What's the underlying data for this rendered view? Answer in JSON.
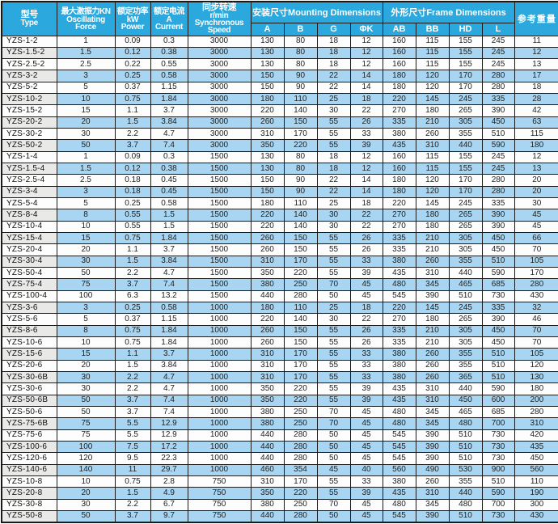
{
  "table": {
    "title": "YZS vibration motor specification table",
    "headers": {
      "type": [
        "型号",
        "Type"
      ],
      "force": [
        "最大激振力KN",
        "Oscillating",
        "Force"
      ],
      "power": [
        "额定功率",
        "kW",
        "Power"
      ],
      "current": [
        "额定电流",
        "A",
        "Current"
      ],
      "speed": [
        "同步转速",
        "r/min",
        "Synchronous",
        "Speed"
      ],
      "mounting_group": "安装尺寸Mounting Dimensions",
      "frame_group": "外形尺寸Frame Dimensions",
      "weight": "参考重量",
      "sub": [
        "A",
        "B",
        "G",
        "ΦK",
        "AB",
        "BB",
        "HD",
        "L"
      ]
    },
    "rows": [
      [
        "YZS-1-2",
        "1",
        "0.09",
        "0.3",
        "3000",
        "130",
        "80",
        "18",
        "12",
        "160",
        "115",
        "155",
        "245",
        "11"
      ],
      [
        "YZS-1.5-2",
        "1.5",
        "0.12",
        "0.38",
        "3000",
        "130",
        "80",
        "18",
        "12",
        "160",
        "115",
        "155",
        "245",
        "12"
      ],
      [
        "YZS-2.5-2",
        "2.5",
        "0.22",
        "0.55",
        "3000",
        "130",
        "80",
        "18",
        "12",
        "160",
        "115",
        "155",
        "245",
        "13"
      ],
      [
        "YZS-3-2",
        "3",
        "0.25",
        "0.58",
        "3000",
        "150",
        "90",
        "22",
        "14",
        "180",
        "120",
        "170",
        "280",
        "17"
      ],
      [
        "YZS-5-2",
        "5",
        "0.37",
        "1.15",
        "3000",
        "150",
        "90",
        "22",
        "14",
        "180",
        "120",
        "170",
        "280",
        "18"
      ],
      [
        "YZS-10-2",
        "10",
        "0.75",
        "1.84",
        "3000",
        "180",
        "110",
        "25",
        "18",
        "220",
        "145",
        "245",
        "335",
        "28"
      ],
      [
        "YZS-15-2",
        "15",
        "1.1",
        "3.7",
        "3000",
        "220",
        "140",
        "30",
        "22",
        "270",
        "180",
        "265",
        "390",
        "42"
      ],
      [
        "YZS-20-2",
        "20",
        "1.5",
        "3.84",
        "3000",
        "260",
        "150",
        "55",
        "26",
        "335",
        "210",
        "305",
        "450",
        "63"
      ],
      [
        "YZS-30-2",
        "30",
        "2.2",
        "4.7",
        "3000",
        "310",
        "170",
        "55",
        "33",
        "380",
        "260",
        "355",
        "510",
        "115"
      ],
      [
        "YZS-50-2",
        "50",
        "3.7",
        "7.4",
        "3000",
        "350",
        "220",
        "55",
        "39",
        "435",
        "310",
        "440",
        "590",
        "180"
      ],
      [
        "YZS-1-4",
        "1",
        "0.09",
        "0.3",
        "1500",
        "130",
        "80",
        "18",
        "12",
        "160",
        "115",
        "155",
        "245",
        "12"
      ],
      [
        "YZS-1.5-4",
        "1.5",
        "0.12",
        "0.38",
        "1500",
        "130",
        "80",
        "18",
        "12",
        "160",
        "115",
        "155",
        "245",
        "13"
      ],
      [
        "YZS-2.5-4",
        "2.5",
        "0.18",
        "0.45",
        "1500",
        "150",
        "90",
        "22",
        "14",
        "180",
        "120",
        "170",
        "280",
        "20"
      ],
      [
        "YZS-3-4",
        "3",
        "0.18",
        "0.45",
        "1500",
        "150",
        "90",
        "22",
        "14",
        "180",
        "120",
        "170",
        "280",
        "20"
      ],
      [
        "YZS-5-4",
        "5",
        "0.25",
        "0.58",
        "1500",
        "180",
        "110",
        "25",
        "18",
        "220",
        "145",
        "245",
        "335",
        "30"
      ],
      [
        "YZS-8-4",
        "8",
        "0.55",
        "1.5",
        "1500",
        "220",
        "140",
        "30",
        "22",
        "270",
        "180",
        "265",
        "390",
        "45"
      ],
      [
        "YZS-10-4",
        "10",
        "0.55",
        "1.5",
        "1500",
        "220",
        "140",
        "30",
        "22",
        "270",
        "180",
        "265",
        "390",
        "45"
      ],
      [
        "YZS-15-4",
        "15",
        "0.75",
        "1.84",
        "1500",
        "260",
        "150",
        "55",
        "26",
        "335",
        "210",
        "305",
        "450",
        "66"
      ],
      [
        "YZS-20-4",
        "20",
        "1.1",
        "3.7",
        "1500",
        "260",
        "150",
        "55",
        "26",
        "335",
        "210",
        "305",
        "450",
        "70"
      ],
      [
        "YZS-30-4",
        "30",
        "1.5",
        "3.84",
        "1500",
        "310",
        "170",
        "55",
        "33",
        "380",
        "260",
        "355",
        "510",
        "105"
      ],
      [
        "YZS-50-4",
        "50",
        "2.2",
        "4.7",
        "1500",
        "350",
        "220",
        "55",
        "39",
        "435",
        "310",
        "440",
        "590",
        "170"
      ],
      [
        "YZS-75-4",
        "75",
        "3.7",
        "7.4",
        "1500",
        "380",
        "250",
        "70",
        "45",
        "480",
        "345",
        "465",
        "685",
        "280"
      ],
      [
        "YZS-100-4",
        "100",
        "6.3",
        "13.2",
        "1500",
        "440",
        "280",
        "50",
        "45",
        "545",
        "390",
        "510",
        "730",
        "430"
      ],
      [
        "YZS-3-6",
        "3",
        "0.25",
        "0.58",
        "1000",
        "180",
        "110",
        "25",
        "18",
        "220",
        "145",
        "245",
        "335",
        "32"
      ],
      [
        "YZS-5-6",
        "5",
        "0.37",
        "1.15",
        "1000",
        "220",
        "140",
        "30",
        "22",
        "270",
        "180",
        "265",
        "390",
        "46"
      ],
      [
        "YZS-8-6",
        "8",
        "0.75",
        "1.84",
        "1000",
        "260",
        "150",
        "55",
        "26",
        "335",
        "210",
        "305",
        "450",
        "70"
      ],
      [
        "YZS-10-6",
        "10",
        "0.75",
        "1.84",
        "1000",
        "260",
        "150",
        "55",
        "26",
        "335",
        "210",
        "305",
        "450",
        "70"
      ],
      [
        "YZS-15-6",
        "15",
        "1.1",
        "3.7",
        "1000",
        "310",
        "170",
        "55",
        "33",
        "380",
        "260",
        "355",
        "510",
        "105"
      ],
      [
        "YZS-20-6",
        "20",
        "1.5",
        "3.84",
        "1000",
        "310",
        "170",
        "55",
        "33",
        "380",
        "260",
        "355",
        "510",
        "120"
      ],
      [
        "YZS-30-6B",
        "30",
        "2.2",
        "4.7",
        "1000",
        "310",
        "170",
        "55",
        "33",
        "380",
        "260",
        "365",
        "510",
        "130"
      ],
      [
        "YZS-30-6",
        "30",
        "2.2",
        "4.7",
        "1000",
        "350",
        "220",
        "55",
        "39",
        "435",
        "310",
        "440",
        "590",
        "180"
      ],
      [
        "YZS-50-6B",
        "50",
        "3.7",
        "7.4",
        "1000",
        "350",
        "220",
        "55",
        "39",
        "435",
        "310",
        "450",
        "600",
        "200"
      ],
      [
        "YZS-50-6",
        "50",
        "3.7",
        "7.4",
        "1000",
        "380",
        "250",
        "70",
        "45",
        "480",
        "345",
        "465",
        "685",
        "280"
      ],
      [
        "YZS-75-6B",
        "75",
        "5.5",
        "12.9",
        "1000",
        "380",
        "250",
        "70",
        "45",
        "480",
        "345",
        "480",
        "700",
        "310"
      ],
      [
        "YZS-75-6",
        "75",
        "5.5",
        "12.9",
        "1000",
        "440",
        "280",
        "50",
        "45",
        "545",
        "390",
        "510",
        "730",
        "420"
      ],
      [
        "YZS-100-6",
        "100",
        "7.5",
        "17.2",
        "1000",
        "440",
        "280",
        "50",
        "45",
        "545",
        "390",
        "510",
        "730",
        "435"
      ],
      [
        "YZS-120-6",
        "120",
        "9.5",
        "22.3",
        "1000",
        "440",
        "280",
        "50",
        "45",
        "545",
        "390",
        "510",
        "730",
        "450"
      ],
      [
        "YZS-140-6",
        "140",
        "11",
        "29.7",
        "1000",
        "460",
        "354",
        "45",
        "40",
        "560",
        "490",
        "530",
        "900",
        "560"
      ],
      [
        "YZS-10-8",
        "10",
        "0.75",
        "2.8",
        "750",
        "310",
        "170",
        "55",
        "33",
        "380",
        "260",
        "355",
        "510",
        "110"
      ],
      [
        "YZS-20-8",
        "20",
        "1.5",
        "4.9",
        "750",
        "350",
        "220",
        "55",
        "39",
        "435",
        "310",
        "440",
        "590",
        "190"
      ],
      [
        "YZS-30-8",
        "30",
        "2.2",
        "6.7",
        "750",
        "380",
        "250",
        "70",
        "45",
        "480",
        "345",
        "480",
        "700",
        "300"
      ],
      [
        "YZS-50-8",
        "50",
        "3.7",
        "9.7",
        "750",
        "440",
        "280",
        "50",
        "45",
        "545",
        "390",
        "510",
        "730",
        "430"
      ]
    ],
    "column_keys": [
      "type",
      "force",
      "power",
      "current",
      "speed",
      "a",
      "b",
      "g",
      "phik",
      "ab",
      "bb",
      "hd",
      "l",
      "weight"
    ]
  },
  "colors": {
    "header_bg": "#2ba9de",
    "row_alt_bg": "#a8d5f1",
    "type_alt_bg": "#e9e9e7",
    "border": "#1a1a1a"
  }
}
